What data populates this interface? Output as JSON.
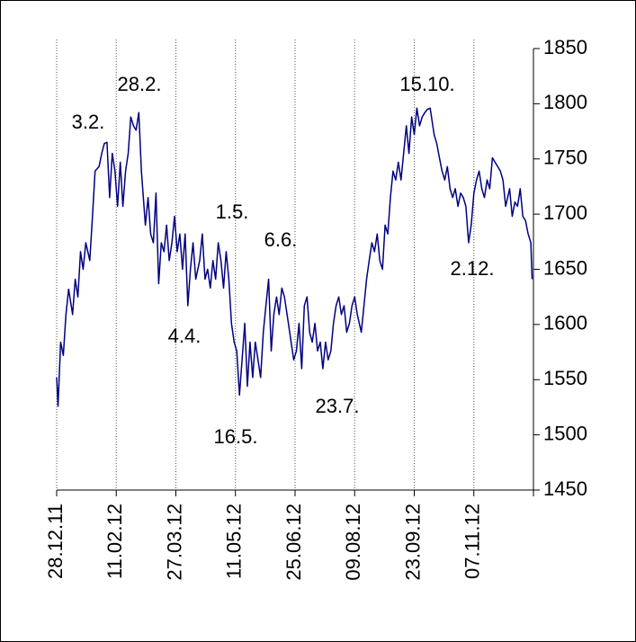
{
  "chart_data": {
    "type": "line",
    "x": [
      0,
      1,
      3,
      5,
      7,
      9,
      12,
      14,
      16,
      18,
      20,
      22,
      25,
      27,
      29,
      32,
      34,
      36,
      38,
      40,
      42,
      44,
      46,
      48,
      50,
      52,
      54,
      56,
      58,
      60,
      62,
      64,
      67,
      69,
      71,
      73,
      75,
      77,
      79,
      81,
      83,
      85,
      87,
      89,
      91,
      93,
      95,
      97,
      99,
      101,
      103,
      105,
      108,
      110,
      112,
      114,
      116,
      118,
      120,
      122,
      124,
      126,
      128,
      130,
      132,
      134,
      136,
      138,
      140,
      142,
      144,
      146,
      148,
      150,
      152,
      154,
      156,
      158,
      160,
      162,
      164,
      166,
      168,
      170,
      172,
      175,
      177,
      179,
      181,
      183,
      185,
      187,
      189,
      191,
      193,
      195,
      197,
      199,
      201,
      203,
      205,
      207,
      209,
      211,
      213,
      215,
      217,
      219,
      221,
      223,
      225,
      227,
      230,
      232,
      234,
      236,
      238,
      240,
      242,
      244,
      246,
      248,
      250,
      252,
      254,
      256,
      258,
      260,
      262,
      264,
      266,
      268,
      270,
      272,
      274,
      276,
      278,
      280,
      282,
      285,
      287,
      289,
      291,
      293,
      295,
      297,
      299,
      301,
      303,
      305,
      307,
      309,
      311,
      313,
      315,
      317,
      319,
      321,
      323,
      325,
      327,
      329,
      331,
      333,
      335,
      337,
      339,
      342,
      344,
      346,
      348,
      350,
      352,
      354,
      356,
      358,
      359
    ],
    "series": [
      {
        "color": "#000080",
        "values": [
          1552,
          1526,
          1584,
          1572,
          1609,
          1632,
          1609,
          1641,
          1625,
          1666,
          1650,
          1674,
          1658,
          1698,
          1739,
          1743,
          1755,
          1764,
          1765,
          1715,
          1755,
          1739,
          1707,
          1747,
          1707,
          1739,
          1755,
          1788,
          1780,
          1776,
          1792,
          1739,
          1690,
          1715,
          1682,
          1674,
          1719,
          1637,
          1674,
          1666,
          1690,
          1658,
          1674,
          1698,
          1666,
          1682,
          1650,
          1682,
          1617,
          1650,
          1674,
          1641,
          1658,
          1682,
          1641,
          1650,
          1633,
          1658,
          1641,
          1674,
          1658,
          1633,
          1666,
          1641,
          1601,
          1584,
          1576,
          1536,
          1568,
          1601,
          1544,
          1584,
          1552,
          1584,
          1568,
          1552,
          1593,
          1617,
          1641,
          1576,
          1609,
          1625,
          1609,
          1633,
          1625,
          1601,
          1584,
          1568,
          1576,
          1601,
          1560,
          1617,
          1625,
          1593,
          1584,
          1601,
          1576,
          1584,
          1560,
          1584,
          1568,
          1576,
          1601,
          1617,
          1625,
          1609,
          1617,
          1593,
          1601,
          1617,
          1625,
          1609,
          1593,
          1617,
          1641,
          1658,
          1674,
          1666,
          1682,
          1658,
          1650,
          1690,
          1682,
          1715,
          1739,
          1731,
          1747,
          1731,
          1755,
          1780,
          1755,
          1788,
          1772,
          1796,
          1780,
          1788,
          1792,
          1795,
          1796,
          1772,
          1764,
          1751,
          1739,
          1731,
          1743,
          1723,
          1715,
          1723,
          1707,
          1719,
          1715,
          1707,
          1674,
          1690,
          1719,
          1731,
          1739,
          1723,
          1715,
          1731,
          1723,
          1751,
          1747,
          1743,
          1739,
          1731,
          1707,
          1723,
          1698,
          1711,
          1707,
          1723,
          1698,
          1694,
          1682,
          1674,
          1641
        ]
      }
    ],
    "xlim": [
      0,
      360
    ],
    "xticks": [
      {
        "value": 0,
        "label": "28.12.11"
      },
      {
        "value": 45,
        "label": "11.02.12"
      },
      {
        "value": 90,
        "label": "27.03.12"
      },
      {
        "value": 135,
        "label": "11.05.12"
      },
      {
        "value": 180,
        "label": "25.06.12"
      },
      {
        "value": 225,
        "label": "09.08.12"
      },
      {
        "value": 270,
        "label": "23.09.12"
      },
      {
        "value": 315,
        "label": "07.11.12"
      }
    ],
    "ylim": [
      1450,
      1850
    ],
    "yticks": [
      1450,
      1500,
      1550,
      1600,
      1650,
      1700,
      1750,
      1800,
      1850
    ],
    "xgrid": true,
    "annotations": [
      "3.2.",
      "28.2.",
      "1.5.",
      "6.6.",
      "4.4.",
      "16.5.",
      "23.7.",
      "15.10.",
      "2.12."
    ]
  }
}
